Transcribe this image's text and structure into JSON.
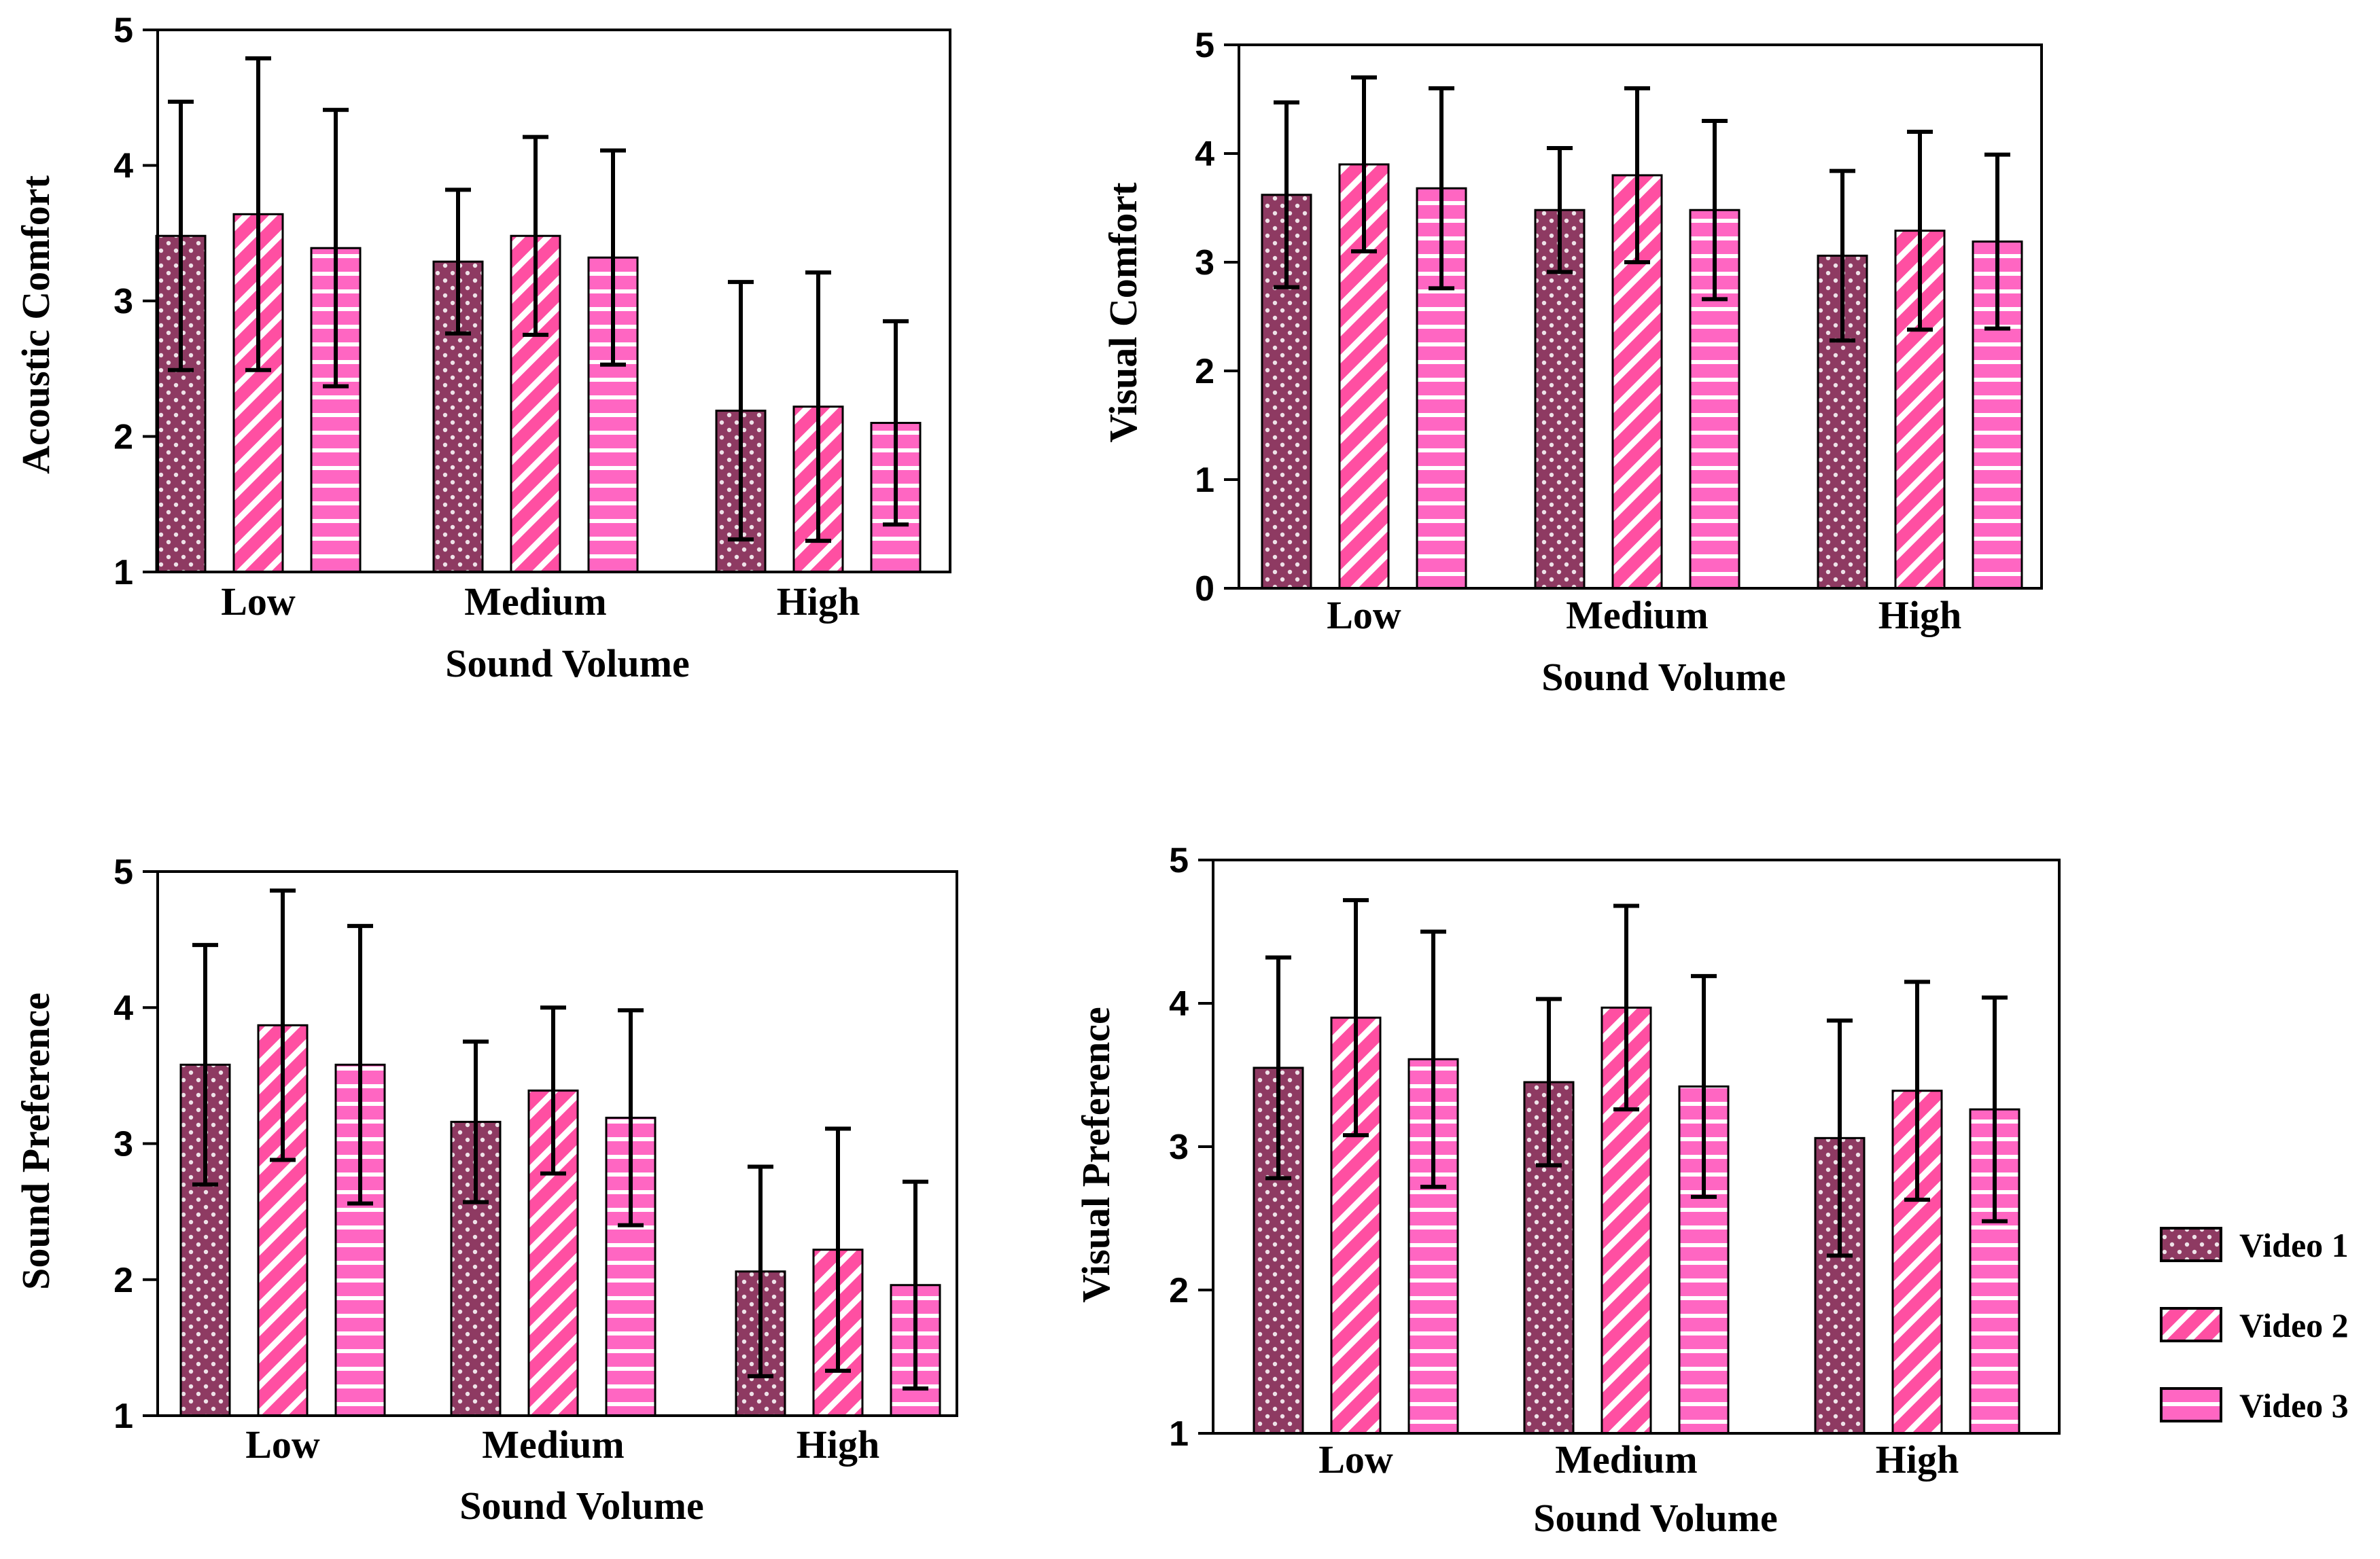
{
  "colors": {
    "video1": "#8e3a62",
    "video2": "#ff4fa2",
    "video3": "#ff66c2",
    "axis": "#000000"
  },
  "legend": [
    {
      "name": "Video 1",
      "pattern": "dots"
    },
    {
      "name": "Video 2",
      "pattern": "diagonal"
    },
    {
      "name": "Video 3",
      "pattern": "horizontal"
    }
  ],
  "chart_data": [
    {
      "type": "bar",
      "title": "",
      "xlabel": "Sound Volume",
      "ylabel": "Acoustic Comfort",
      "ylim": [
        1,
        5
      ],
      "yticks": [
        "1",
        "2",
        "3",
        "4",
        "5"
      ],
      "categories": [
        "Low",
        "Medium",
        "High"
      ],
      "series": [
        {
          "name": "Video 1",
          "values": [
            3.48,
            3.29,
            2.19
          ],
          "errors": [
            0.99,
            0.53,
            0.95
          ]
        },
        {
          "name": "Video 2",
          "values": [
            3.64,
            3.48,
            2.22
          ],
          "errors": [
            1.15,
            0.73,
            0.99
          ]
        },
        {
          "name": "Video 3",
          "values": [
            3.39,
            3.32,
            2.1
          ],
          "errors": [
            1.02,
            0.79,
            0.75
          ]
        }
      ]
    },
    {
      "type": "bar",
      "title": "",
      "xlabel": "Sound Volume",
      "ylabel": "Visual Comfort",
      "ylim": [
        0,
        5
      ],
      "yticks": [
        "0",
        "1",
        "2",
        "3",
        "4",
        "5"
      ],
      "categories": [
        "Low",
        "Medium",
        "High"
      ],
      "series": [
        {
          "name": "Video 1",
          "values": [
            3.62,
            3.48,
            3.06
          ],
          "errors": [
            0.85,
            0.57,
            0.78
          ]
        },
        {
          "name": "Video 2",
          "values": [
            3.9,
            3.8,
            3.29
          ],
          "errors": [
            0.8,
            0.8,
            0.91
          ]
        },
        {
          "name": "Video 3",
          "values": [
            3.68,
            3.48,
            3.19
          ],
          "errors": [
            0.92,
            0.82,
            0.8
          ]
        }
      ]
    },
    {
      "type": "bar",
      "title": "",
      "xlabel": "Sound Volume",
      "ylabel": "Sound Preference",
      "ylim": [
        1,
        5
      ],
      "yticks": [
        "1",
        "2",
        "3",
        "4",
        "5"
      ],
      "categories": [
        "Low",
        "Medium",
        "High"
      ],
      "series": [
        {
          "name": "Video 1",
          "values": [
            3.58,
            3.16,
            2.06
          ],
          "errors": [
            0.88,
            0.59,
            0.77
          ]
        },
        {
          "name": "Video 2",
          "values": [
            3.87,
            3.39,
            2.22
          ],
          "errors": [
            0.99,
            0.61,
            0.89
          ]
        },
        {
          "name": "Video 3",
          "values": [
            3.58,
            3.19,
            1.96
          ],
          "errors": [
            1.02,
            0.79,
            0.76
          ]
        }
      ]
    },
    {
      "type": "bar",
      "title": "",
      "xlabel": "Sound Volume",
      "ylabel": "Visual Preference",
      "ylim": [
        1,
        5
      ],
      "yticks": [
        "1",
        "2",
        "3",
        "4",
        "5"
      ],
      "categories": [
        "Low",
        "Medium",
        "High"
      ],
      "series": [
        {
          "name": "Video 1",
          "values": [
            3.55,
            3.45,
            3.06
          ],
          "errors": [
            0.77,
            0.58,
            0.82
          ]
        },
        {
          "name": "Video 2",
          "values": [
            3.9,
            3.97,
            3.39
          ],
          "errors": [
            0.82,
            0.71,
            0.76
          ]
        },
        {
          "name": "Video 3",
          "values": [
            3.61,
            3.42,
            3.26
          ],
          "errors": [
            0.89,
            0.77,
            0.78
          ]
        }
      ]
    }
  ]
}
